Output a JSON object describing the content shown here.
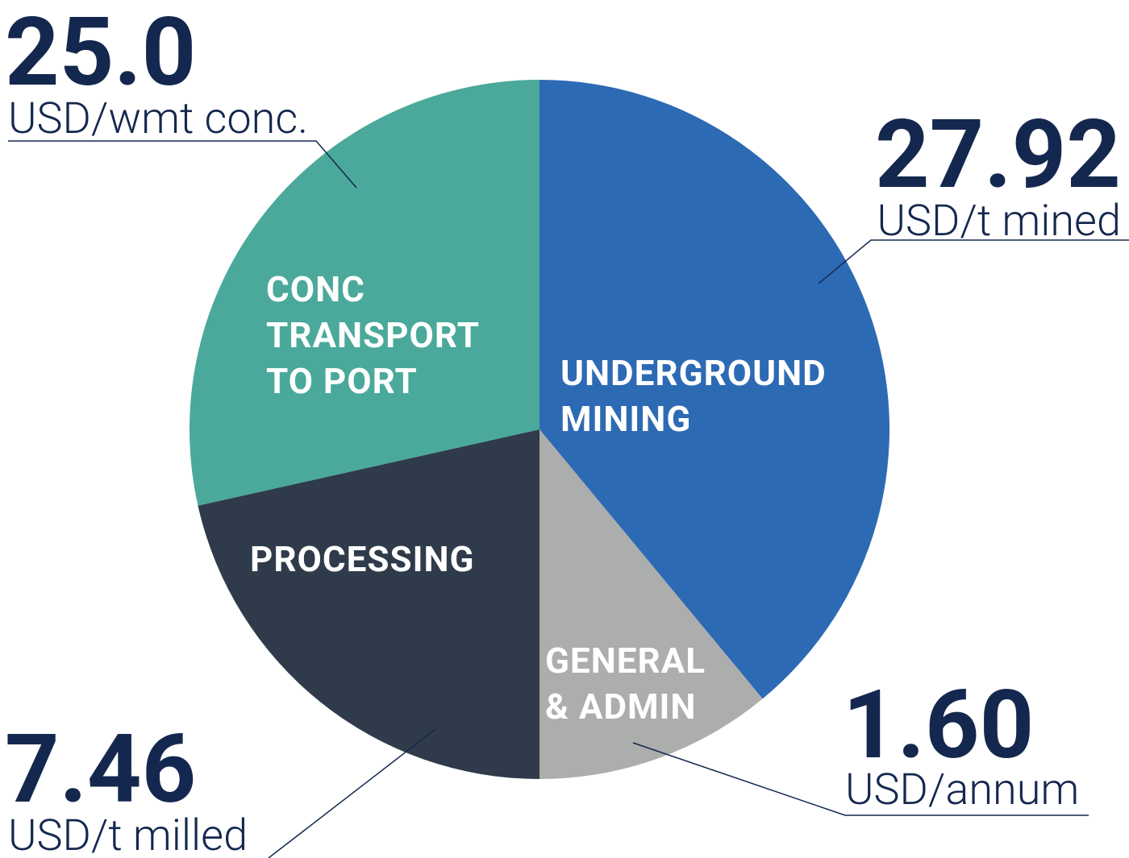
{
  "chart_data": {
    "type": "pie",
    "categories": [
      "UNDERGROUND MINING",
      "GENERAL & ADMIN",
      "PROCESSING",
      "CONC TRANSPORT TO PORT"
    ],
    "values": [
      39,
      11,
      21.5,
      28.5
    ],
    "colors": [
      "#2d6ab4",
      "#acadad",
      "#2f3b4a",
      "#4aa99b"
    ],
    "callouts": [
      {
        "figure": "27.92",
        "unit": "USD/t mined"
      },
      {
        "figure": "1.60",
        "unit": "USD/annum"
      },
      {
        "figure": "7.46",
        "unit": "USD/t milled"
      },
      {
        "figure": "25.0",
        "unit": "USD/wmt conc."
      }
    ]
  }
}
